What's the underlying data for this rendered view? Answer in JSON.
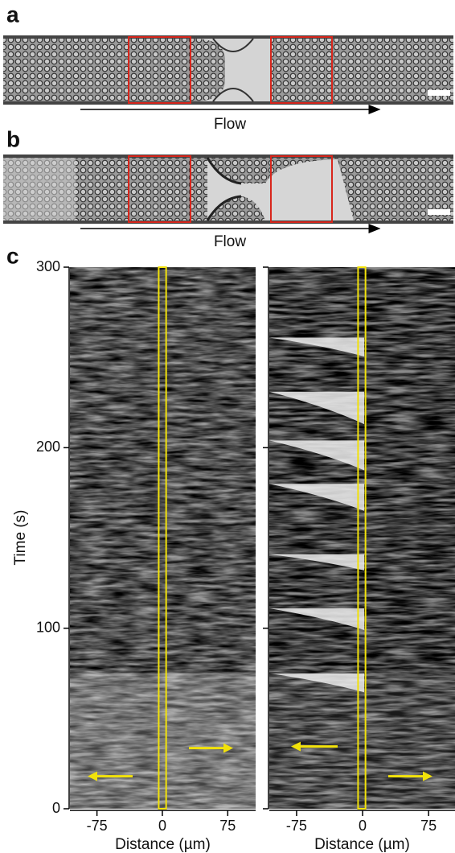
{
  "panels": {
    "a": {
      "label": "a",
      "flow_label": "Flow"
    },
    "b": {
      "label": "b",
      "flow_label": "Flow"
    },
    "c": {
      "label": "c",
      "y_axis_label": "Time (s)",
      "plots": [
        {
          "x_axis_label": "Distance (µm)",
          "xlim": [
            -106,
            107
          ],
          "ylim": [
            0,
            300
          ],
          "xticks": [
            -75,
            0,
            75
          ],
          "yticks": [
            0,
            100,
            200,
            300
          ]
        },
        {
          "x_axis_label": "Distance (µm)",
          "xlim": [
            -106,
            105
          ],
          "ylim": [
            0,
            300
          ],
          "xticks": [
            -75,
            0,
            75
          ],
          "yticks": [
            0,
            100,
            200,
            300
          ]
        }
      ]
    }
  }
}
